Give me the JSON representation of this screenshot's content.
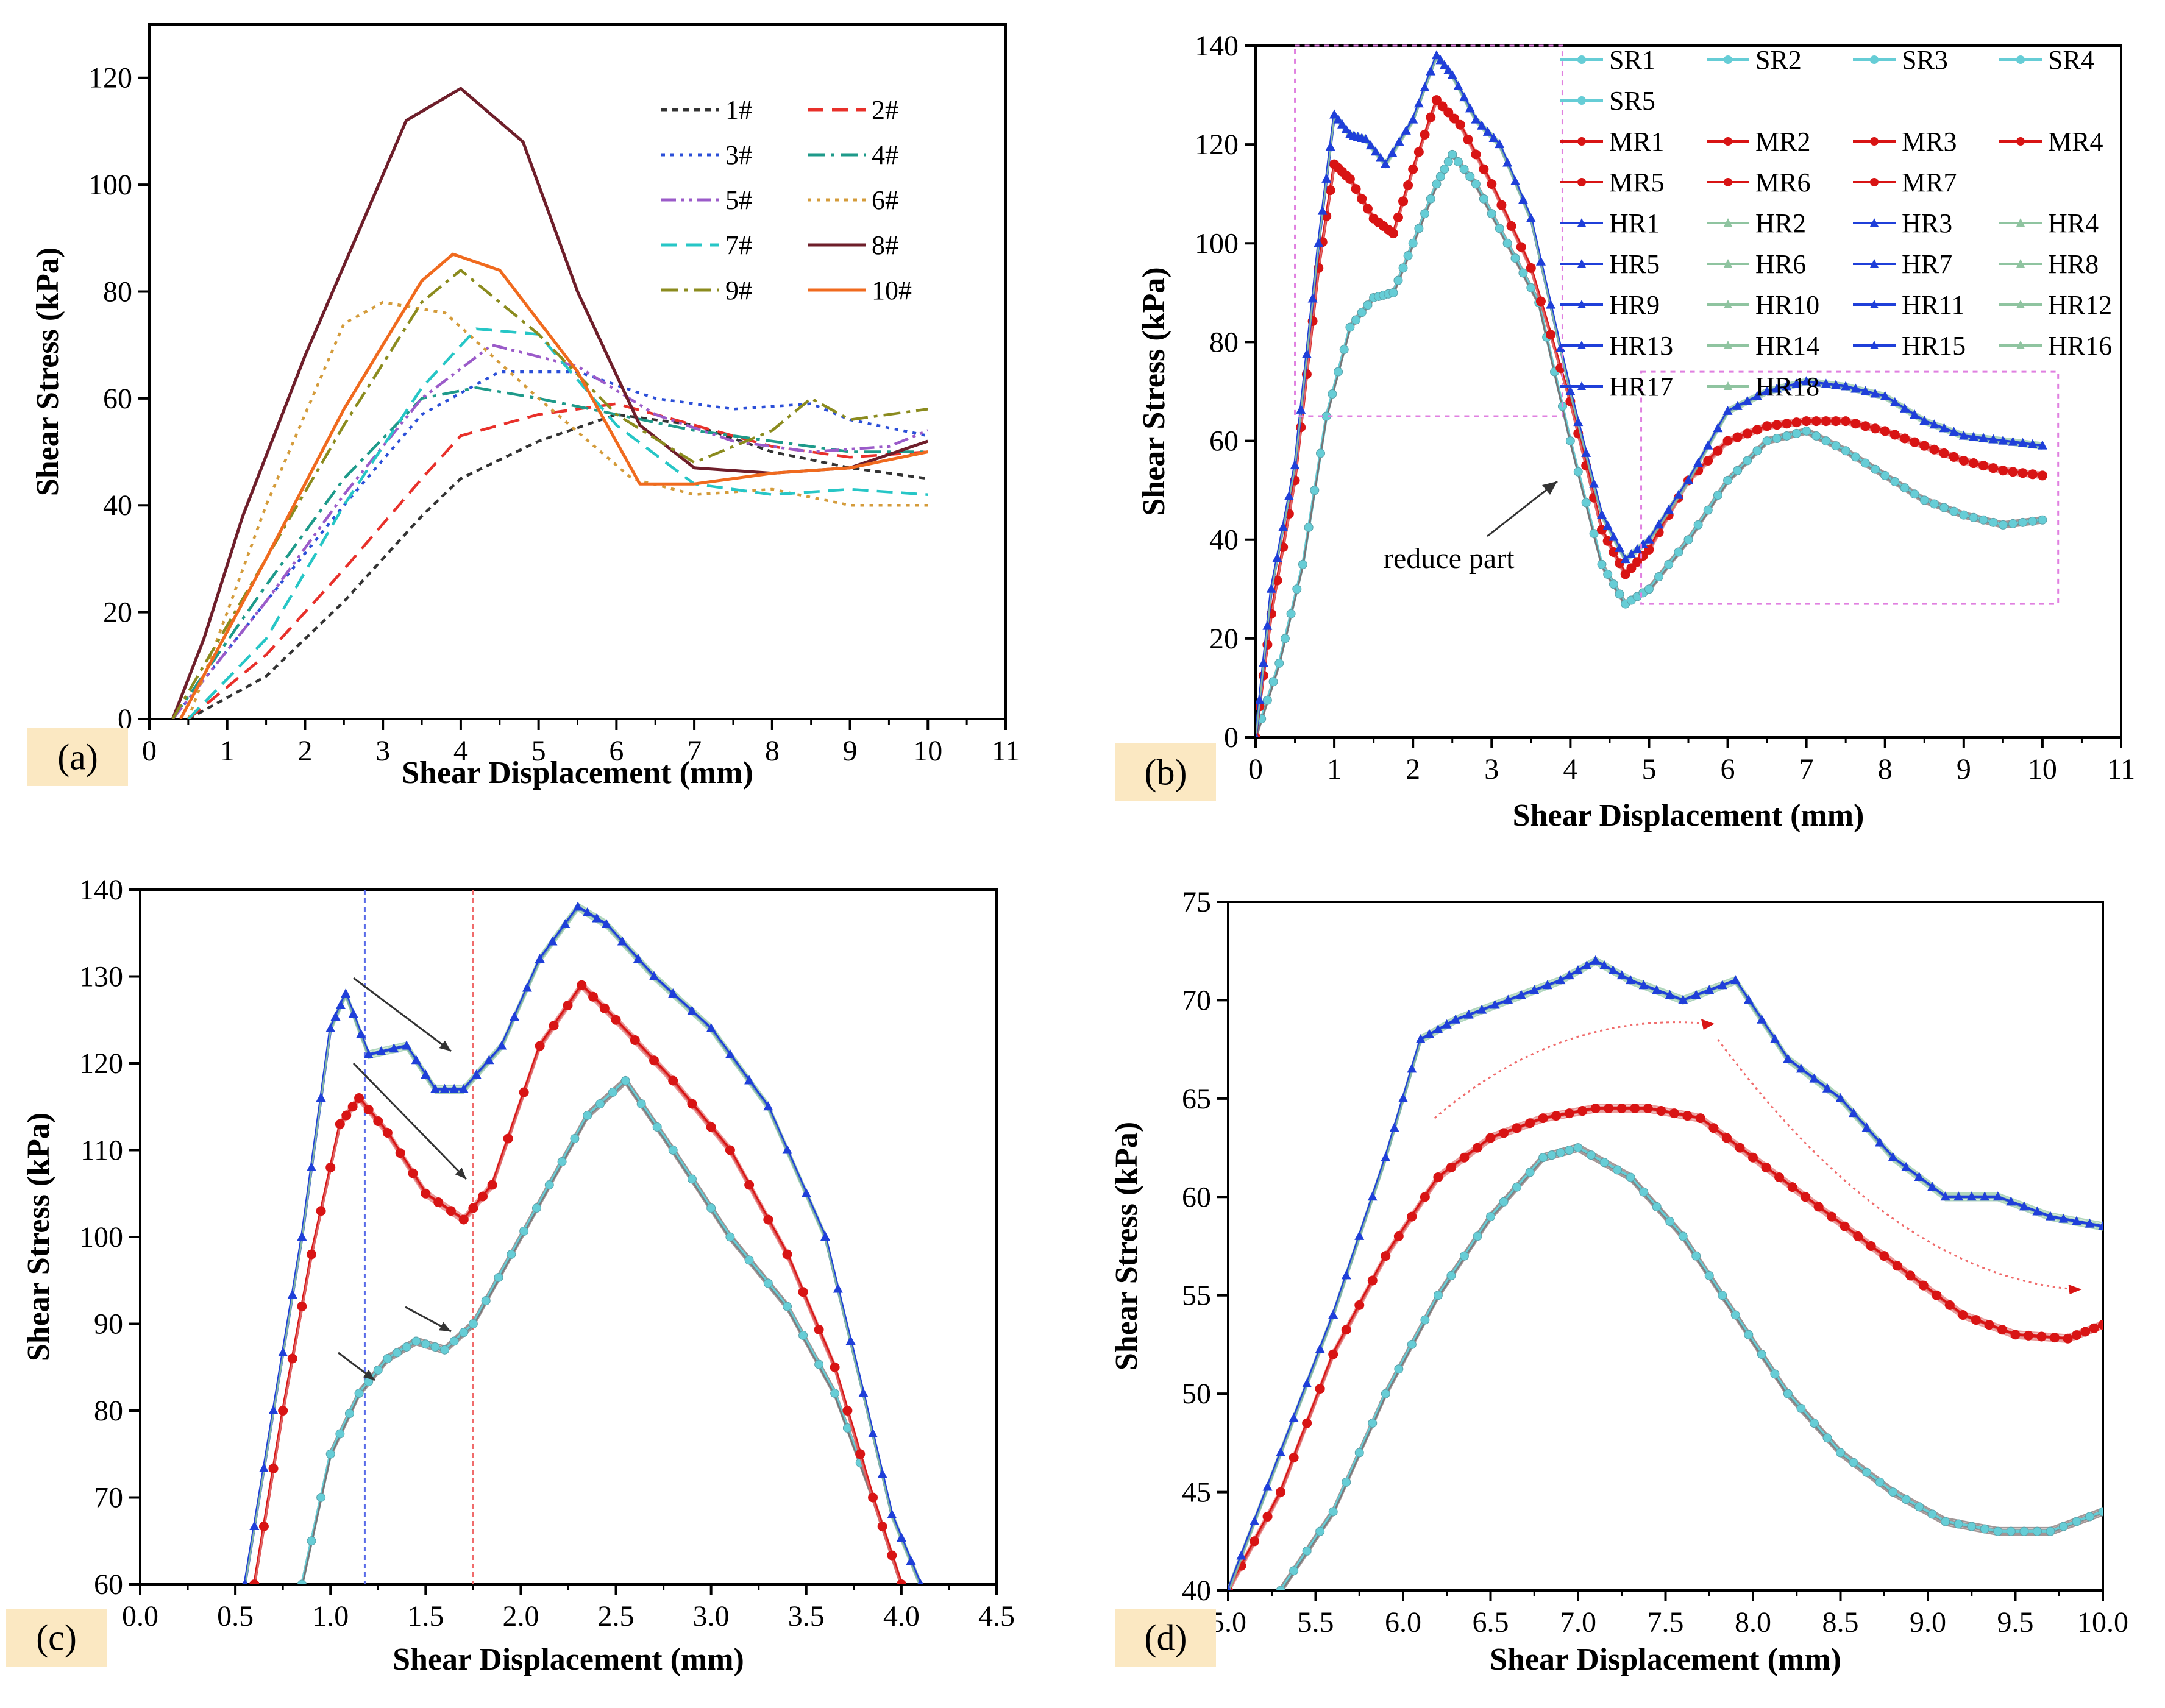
{
  "colors": {
    "label_box": "#FBE8C2",
    "sr": "#66CDD6",
    "mr": "#D81414",
    "hr": "#1F3FD9",
    "hr_alt": "#8FC4A0",
    "guide_blue": "#5A6CE8",
    "guide_red": "#F06C6C",
    "dashed_box": "#E080E0"
  },
  "chart_data": [
    {
      "panel_label": "(a)",
      "type": "line",
      "xlabel": "Shear Displacement (mm)",
      "ylabel": "Shear Stress (kPa)",
      "xlim": [
        0,
        11
      ],
      "ylim": [
        0,
        130
      ],
      "xticks": [
        "0",
        "1",
        "2",
        "3",
        "4",
        "5",
        "6",
        "7",
        "8",
        "9",
        "10",
        "11"
      ],
      "yticks": [
        "0",
        "20",
        "40",
        "60",
        "80",
        "100",
        "120"
      ],
      "legend_position": "top-right",
      "series": [
        {
          "name": "1#",
          "color": "#333333",
          "dash": "dotted-short",
          "x": [
            0.5,
            1.5,
            2.5,
            3.5,
            4,
            5,
            6,
            7,
            8,
            9,
            10
          ],
          "y": [
            0,
            8,
            22,
            38,
            45,
            52,
            57,
            55,
            50,
            47,
            45
          ]
        },
        {
          "name": "2#",
          "color": "#E8302A",
          "dash": "dashed",
          "x": [
            0.5,
            1.5,
            2.5,
            3.5,
            4,
            5,
            6,
            7,
            8,
            9,
            10
          ],
          "y": [
            0,
            12,
            28,
            45,
            53,
            57,
            59,
            55,
            51,
            49,
            50
          ]
        },
        {
          "name": "3#",
          "color": "#2B4FD8",
          "dash": "dotted",
          "x": [
            0.3,
            1.5,
            2.5,
            3.5,
            4.5,
            5.5,
            6.5,
            7.5,
            8.5,
            9,
            10
          ],
          "y": [
            0,
            22,
            40,
            57,
            65,
            65,
            60,
            58,
            59,
            56,
            53
          ]
        },
        {
          "name": "4#",
          "color": "#1E9A8A",
          "dash": "dash-dot",
          "x": [
            0.3,
            1.5,
            2.5,
            3.5,
            4.2,
            5,
            6,
            7,
            8,
            9,
            10
          ],
          "y": [
            0,
            25,
            45,
            60,
            62,
            60,
            57,
            54,
            52,
            50,
            50
          ]
        },
        {
          "name": "5#",
          "color": "#9B5BC9",
          "dash": "dash-dot-dot",
          "x": [
            0.3,
            1.5,
            2.5,
            3.5,
            4.4,
            5.5,
            6.5,
            7.5,
            8.5,
            9.5,
            10
          ],
          "y": [
            0,
            22,
            42,
            60,
            70,
            66,
            57,
            52,
            50,
            51,
            54
          ]
        },
        {
          "name": "6#",
          "color": "#D49B3A",
          "dash": "dotted",
          "x": [
            0.5,
            1.5,
            2.5,
            3,
            3.8,
            5,
            6.2,
            7,
            8,
            9,
            10
          ],
          "y": [
            0,
            40,
            74,
            78,
            76,
            60,
            45,
            42,
            43,
            40,
            40
          ]
        },
        {
          "name": "7#",
          "color": "#26C6C6",
          "dash": "dashed",
          "x": [
            0.5,
            1.5,
            2.5,
            3.5,
            4.2,
            5,
            6,
            7,
            8,
            9,
            10
          ],
          "y": [
            0,
            15,
            40,
            62,
            73,
            72,
            55,
            44,
            42,
            43,
            42
          ]
        },
        {
          "name": "8#",
          "color": "#6E1E2A",
          "dash": "solid",
          "x": [
            0.3,
            0.7,
            1.2,
            2,
            2.8,
            3.3,
            4,
            4.8,
            5.5,
            6.3,
            7,
            8,
            9,
            10
          ],
          "y": [
            0,
            15,
            38,
            68,
            95,
            112,
            118,
            108,
            80,
            55,
            47,
            46,
            47,
            52
          ]
        },
        {
          "name": "9#",
          "color": "#8B8B1E",
          "dash": "dash-dot",
          "x": [
            0.3,
            1.5,
            2.5,
            3.5,
            4,
            5,
            6,
            7,
            8,
            8.5,
            9,
            10
          ],
          "y": [
            0,
            30,
            55,
            78,
            84,
            72,
            57,
            48,
            54,
            60,
            56,
            58
          ]
        },
        {
          "name": "10#",
          "color": "#F06A1E",
          "dash": "solid",
          "x": [
            0.4,
            1.5,
            2.5,
            3.5,
            3.9,
            4.5,
            5.5,
            6.3,
            7,
            8,
            9,
            10
          ],
          "y": [
            0,
            30,
            58,
            82,
            87,
            84,
            65,
            44,
            44,
            46,
            47,
            50
          ]
        }
      ]
    },
    {
      "panel_label": "(b)",
      "type": "line",
      "xlabel": "Shear Displacement (mm)",
      "ylabel": "Shear Stress (kPa)",
      "xlim": [
        0,
        11
      ],
      "ylim": [
        0,
        140
      ],
      "xticks": [
        "0",
        "1",
        "2",
        "3",
        "4",
        "5",
        "6",
        "7",
        "8",
        "9",
        "10",
        "11"
      ],
      "yticks": [
        "0",
        "20",
        "40",
        "60",
        "80",
        "100",
        "120",
        "140"
      ],
      "legend_position": "top-right",
      "legend_columns": 4,
      "annotation": "reduce part",
      "boxes": [
        {
          "label": "upper dashed box",
          "x_range": [
            0.5,
            3.9
          ],
          "y_range": [
            65,
            140
          ]
        },
        {
          "label": "lower dashed box",
          "x_range": [
            4.9,
            10.2
          ],
          "y_range": [
            27,
            74
          ]
        }
      ],
      "groups": [
        {
          "group": "HR",
          "color_key": "hr",
          "names": [
            "HR1",
            "HR2",
            "HR3",
            "HR4",
            "HR5",
            "HR6",
            "HR7",
            "HR8",
            "HR9",
            "HR10",
            "HR11",
            "HR12",
            "HR13",
            "HR14",
            "HR15",
            "HR16",
            "HR17",
            "HR18"
          ],
          "x": [
            0,
            0.2,
            0.5,
            0.8,
            1.0,
            1.2,
            1.4,
            1.65,
            2.0,
            2.3,
            2.5,
            2.8,
            3.1,
            3.5,
            4.0,
            4.4,
            4.7,
            5.0,
            5.5,
            6.0,
            6.5,
            7.0,
            7.5,
            8.0,
            8.5,
            9.0,
            9.5,
            10.0
          ],
          "y": [
            0,
            30,
            55,
            100,
            126,
            122,
            121,
            116,
            125,
            138,
            134,
            125,
            120,
            105,
            70,
            45,
            36,
            40,
            52,
            66,
            70,
            72,
            71,
            69,
            64,
            61,
            60,
            59
          ]
        },
        {
          "group": "MR",
          "color_key": "mr",
          "names": [
            "MR1",
            "MR2",
            "MR3",
            "MR4",
            "MR5",
            "MR6",
            "MR7"
          ],
          "x": [
            0,
            0.2,
            0.5,
            0.8,
            1.0,
            1.2,
            1.5,
            1.75,
            2.0,
            2.3,
            2.6,
            3.0,
            3.5,
            4.0,
            4.4,
            4.7,
            5.0,
            5.5,
            6.0,
            6.5,
            7.0,
            7.5,
            8.0,
            8.5,
            9.0,
            9.5,
            10.0
          ],
          "y": [
            0,
            25,
            52,
            95,
            116,
            113,
            105,
            102,
            115,
            129,
            124,
            112,
            95,
            68,
            42,
            33,
            38,
            52,
            60,
            63,
            64,
            64,
            62,
            59,
            56,
            54,
            53
          ]
        },
        {
          "group": "SR",
          "color_key": "sr",
          "names": [
            "SR1",
            "SR2",
            "SR3",
            "SR4",
            "SR5"
          ],
          "x": [
            0,
            0.3,
            0.6,
            0.9,
            1.2,
            1.5,
            1.75,
            2.0,
            2.3,
            2.5,
            2.8,
            3.2,
            3.6,
            4.0,
            4.4,
            4.7,
            5.0,
            5.5,
            6.0,
            6.5,
            7.0,
            7.5,
            8.0,
            8.5,
            9.0,
            9.5,
            10.0
          ],
          "y": [
            0,
            15,
            35,
            65,
            83,
            89,
            90,
            100,
            112,
            118,
            112,
            100,
            88,
            60,
            35,
            27,
            30,
            40,
            52,
            60,
            62,
            58,
            53,
            48,
            45,
            43,
            44
          ]
        }
      ]
    },
    {
      "panel_label": "(c)",
      "type": "line",
      "xlabel": "Shear Displacement (mm)",
      "ylabel": "Shear Stress (kPa)",
      "xlim": [
        0.0,
        4.5
      ],
      "ylim": [
        60,
        140
      ],
      "xticks": [
        "0.0",
        "0.5",
        "1.0",
        "1.5",
        "2.0",
        "2.5",
        "3.0",
        "3.5",
        "4.0",
        "4.5"
      ],
      "yticks": [
        "60",
        "70",
        "80",
        "90",
        "100",
        "110",
        "120",
        "130",
        "140"
      ],
      "guide_lines_x": [
        1.18,
        1.75
      ],
      "groups": [
        {
          "group": "HR",
          "color_key": "hr",
          "x": [
            0.55,
            0.7,
            0.85,
            1.0,
            1.08,
            1.2,
            1.4,
            1.55,
            1.7,
            1.9,
            2.1,
            2.3,
            2.45,
            2.7,
            3.0,
            3.3,
            3.6,
            3.8,
            3.95,
            4.1
          ],
          "y": [
            60,
            80,
            100,
            124,
            128,
            121,
            122,
            117,
            117,
            122,
            132,
            138,
            136,
            130,
            124,
            115,
            100,
            82,
            68,
            60
          ]
        },
        {
          "group": "MR",
          "color_key": "mr",
          "x": [
            0.6,
            0.75,
            0.9,
            1.05,
            1.15,
            1.3,
            1.5,
            1.7,
            1.85,
            2.1,
            2.32,
            2.5,
            2.8,
            3.1,
            3.4,
            3.65,
            3.85,
            4.0
          ],
          "y": [
            60,
            80,
            98,
            113,
            116,
            112,
            105,
            102,
            106,
            122,
            129,
            125,
            118,
            110,
            98,
            85,
            70,
            60
          ]
        },
        {
          "group": "SR",
          "color_key": "sr",
          "x": [
            0.85,
            1.0,
            1.15,
            1.3,
            1.45,
            1.6,
            1.75,
            1.95,
            2.15,
            2.35,
            2.55,
            2.8,
            3.1,
            3.4,
            3.65,
            3.85,
            4.0
          ],
          "y": [
            60,
            75,
            82,
            86,
            88,
            87,
            90,
            98,
            106,
            114,
            118,
            110,
            100,
            92,
            82,
            70,
            60
          ]
        }
      ]
    },
    {
      "panel_label": "(d)",
      "type": "line",
      "xlabel": "Shear Displacement (mm)",
      "ylabel": "Shear Stress (kPa)",
      "xlim": [
        5.0,
        10.0
      ],
      "ylim": [
        40,
        75
      ],
      "xticks": [
        "5.0",
        "5.5",
        "6.0",
        "6.5",
        "7.0",
        "7.5",
        "8.0",
        "8.5",
        "9.0",
        "9.5",
        "10.0"
      ],
      "yticks": [
        "40",
        "45",
        "50",
        "55",
        "60",
        "65",
        "70",
        "75"
      ],
      "groups": [
        {
          "group": "HR",
          "color_key": "hr",
          "x": [
            5.0,
            5.3,
            5.6,
            5.9,
            6.1,
            6.3,
            6.6,
            6.9,
            7.1,
            7.3,
            7.6,
            7.9,
            8.2,
            8.5,
            8.8,
            9.1,
            9.4,
            9.7,
            10.0
          ],
          "y": [
            40,
            47,
            54,
            62,
            68,
            69,
            70,
            71,
            72,
            71,
            70,
            71,
            67,
            65,
            62,
            60,
            60,
            59,
            58.5
          ]
        },
        {
          "group": "MR",
          "color_key": "mr",
          "x": [
            5.0,
            5.3,
            5.6,
            5.9,
            6.2,
            6.5,
            6.8,
            7.1,
            7.4,
            7.7,
            8.0,
            8.3,
            8.6,
            8.9,
            9.2,
            9.5,
            9.8,
            10.0
          ],
          "y": [
            40,
            45,
            52,
            57,
            61,
            63,
            64,
            64.5,
            64.5,
            64,
            62,
            60,
            58,
            56,
            54,
            53,
            52.8,
            53.5
          ]
        },
        {
          "group": "SR",
          "color_key": "sr",
          "x": [
            5.3,
            5.6,
            5.9,
            6.2,
            6.5,
            6.8,
            7.0,
            7.3,
            7.6,
            7.9,
            8.2,
            8.5,
            8.8,
            9.1,
            9.4,
            9.7,
            10.0
          ],
          "y": [
            40,
            44,
            50,
            55,
            59,
            62,
            62.5,
            61,
            58,
            54,
            50,
            47,
            45,
            43.5,
            43,
            43,
            44
          ]
        }
      ]
    }
  ]
}
